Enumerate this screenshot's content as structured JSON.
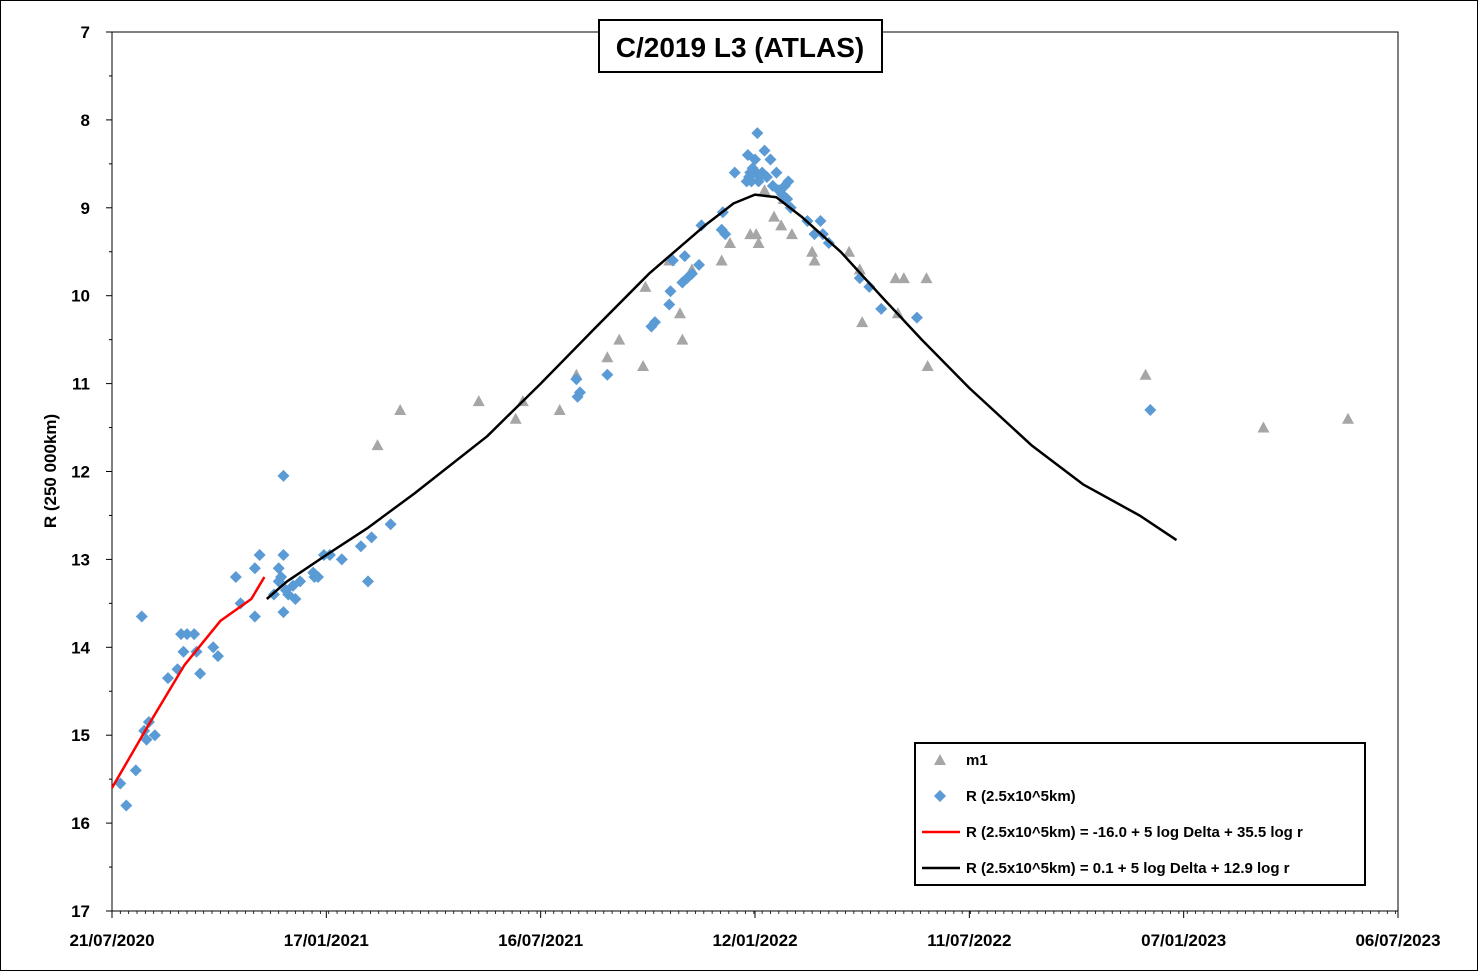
{
  "chart_data": {
    "type": "scatter",
    "title": "C/2019 L3 (ATLAS)",
    "ylabel": "R (250 000km)",
    "xlabel": "",
    "y_inverted": true,
    "ylim": [
      7,
      17
    ],
    "yticks": [
      7,
      8,
      9,
      10,
      11,
      12,
      13,
      14,
      15,
      16,
      17
    ],
    "xlim": [
      "2020-07-21",
      "2023-07-06"
    ],
    "xticks": [
      "2020-07-21",
      "2021-01-17",
      "2021-07-16",
      "2022-01-12",
      "2022-07-11",
      "2023-01-07",
      "2023-07-06"
    ],
    "xtick_labels": [
      "21/07/2020",
      "17/01/2021",
      "16/07/2021",
      "12/01/2022",
      "11/07/2022",
      "07/01/2023",
      "06/07/2023"
    ],
    "grid": false,
    "legend_position": "bottom-right",
    "series": [
      {
        "name": "m1",
        "kind": "scatter",
        "marker": "triangle",
        "color": "#a6a6a6",
        "points": [
          [
            "2021-03-01",
            11.7
          ],
          [
            "2021-03-20",
            11.3
          ],
          [
            "2021-05-25",
            11.2
          ],
          [
            "2021-06-25",
            11.4
          ],
          [
            "2021-07-01",
            11.2
          ],
          [
            "2021-08-01",
            11.3
          ],
          [
            "2021-08-15",
            10.9
          ],
          [
            "2021-09-10",
            10.7
          ],
          [
            "2021-09-20",
            10.5
          ],
          [
            "2021-10-10",
            10.8
          ],
          [
            "2021-10-12",
            9.9
          ],
          [
            "2021-11-01",
            9.6
          ],
          [
            "2021-11-10",
            10.2
          ],
          [
            "2021-11-12",
            10.5
          ],
          [
            "2021-11-20",
            9.7
          ],
          [
            "2021-12-15",
            9.6
          ],
          [
            "2021-12-22",
            9.4
          ],
          [
            "2022-01-08",
            9.3
          ],
          [
            "2022-01-13",
            9.3
          ],
          [
            "2022-01-15",
            9.4
          ],
          [
            "2022-01-20",
            8.8
          ],
          [
            "2022-01-28",
            9.1
          ],
          [
            "2022-02-03",
            9.2
          ],
          [
            "2022-02-05",
            8.9
          ],
          [
            "2022-02-12",
            9.3
          ],
          [
            "2022-03-01",
            9.5
          ],
          [
            "2022-03-03",
            9.6
          ],
          [
            "2022-04-01",
            9.5
          ],
          [
            "2022-04-10",
            9.7
          ],
          [
            "2022-04-12",
            10.3
          ],
          [
            "2022-05-10",
            9.8
          ],
          [
            "2022-05-12",
            10.2
          ],
          [
            "2022-05-17",
            9.8
          ],
          [
            "2022-06-05",
            9.8
          ],
          [
            "2022-06-06",
            10.8
          ],
          [
            "2022-12-06",
            10.9
          ],
          [
            "2023-03-15",
            11.5
          ],
          [
            "2023-05-25",
            11.4
          ]
        ]
      },
      {
        "name": "R (2.5x10^5km)",
        "kind": "scatter",
        "marker": "diamond",
        "color": "#5b9bd5",
        "points": [
          [
            "2020-07-28",
            15.55
          ],
          [
            "2020-08-02",
            15.8
          ],
          [
            "2020-08-10",
            15.4
          ],
          [
            "2020-08-15",
            13.65
          ],
          [
            "2020-08-17",
            14.95
          ],
          [
            "2020-08-19",
            15.05
          ],
          [
            "2020-08-21",
            14.85
          ],
          [
            "2020-08-26",
            15.0
          ],
          [
            "2020-09-06",
            14.35
          ],
          [
            "2020-09-14",
            14.25
          ],
          [
            "2020-09-17",
            13.85
          ],
          [
            "2020-09-19",
            14.05
          ],
          [
            "2020-09-22",
            13.85
          ],
          [
            "2020-09-28",
            13.85
          ],
          [
            "2020-09-30",
            14.05
          ],
          [
            "2020-10-03",
            14.3
          ],
          [
            "2020-10-14",
            14.0
          ],
          [
            "2020-10-18",
            14.1
          ],
          [
            "2020-11-02",
            13.2
          ],
          [
            "2020-11-06",
            13.5
          ],
          [
            "2020-11-18",
            13.65
          ],
          [
            "2020-11-18",
            13.1
          ],
          [
            "2020-11-22",
            12.95
          ],
          [
            "2020-12-04",
            13.4
          ],
          [
            "2020-12-08",
            13.25
          ],
          [
            "2020-12-08",
            13.1
          ],
          [
            "2020-12-10",
            13.2
          ],
          [
            "2020-12-12",
            12.95
          ],
          [
            "2020-12-12",
            12.05
          ],
          [
            "2020-12-12",
            13.6
          ],
          [
            "2020-12-14",
            13.35
          ],
          [
            "2020-12-16",
            13.4
          ],
          [
            "2020-12-20",
            13.3
          ],
          [
            "2020-12-22",
            13.45
          ],
          [
            "2020-12-26",
            13.25
          ],
          [
            "2021-01-06",
            13.15
          ],
          [
            "2021-01-07",
            13.2
          ],
          [
            "2021-01-10",
            13.2
          ],
          [
            "2021-01-15",
            12.95
          ],
          [
            "2021-01-20",
            12.95
          ],
          [
            "2021-01-30",
            13.0
          ],
          [
            "2021-02-15",
            12.85
          ],
          [
            "2021-02-21",
            13.25
          ],
          [
            "2021-02-24",
            12.75
          ],
          [
            "2021-03-12",
            12.6
          ],
          [
            "2021-08-15",
            10.95
          ],
          [
            "2021-08-16",
            11.15
          ],
          [
            "2021-08-18",
            11.1
          ],
          [
            "2021-09-10",
            10.9
          ],
          [
            "2021-10-17",
            10.35
          ],
          [
            "2021-10-20",
            10.3
          ],
          [
            "2021-11-01",
            10.1
          ],
          [
            "2021-11-02",
            9.95
          ],
          [
            "2021-11-04",
            9.6
          ],
          [
            "2021-11-12",
            9.85
          ],
          [
            "2021-11-14",
            9.55
          ],
          [
            "2021-11-16",
            9.8
          ],
          [
            "2021-11-20",
            9.75
          ],
          [
            "2021-11-26",
            9.65
          ],
          [
            "2021-11-28",
            9.2
          ],
          [
            "2021-12-15",
            9.25
          ],
          [
            "2021-12-16",
            9.05
          ],
          [
            "2021-12-18",
            9.3
          ],
          [
            "2021-12-26",
            8.6
          ],
          [
            "2022-01-05",
            8.7
          ],
          [
            "2022-01-06",
            8.4
          ],
          [
            "2022-01-07",
            8.65
          ],
          [
            "2022-01-08",
            8.6
          ],
          [
            "2022-01-09",
            8.7
          ],
          [
            "2022-01-10",
            8.55
          ],
          [
            "2022-01-12",
            8.45
          ],
          [
            "2022-01-13",
            8.6
          ],
          [
            "2022-01-14",
            8.15
          ],
          [
            "2022-01-15",
            8.7
          ],
          [
            "2022-01-16",
            8.65
          ],
          [
            "2022-01-18",
            8.6
          ],
          [
            "2022-01-20",
            8.35
          ],
          [
            "2022-01-22",
            8.65
          ],
          [
            "2022-01-25",
            8.45
          ],
          [
            "2022-01-27",
            8.75
          ],
          [
            "2022-01-30",
            8.6
          ],
          [
            "2022-02-01",
            8.8
          ],
          [
            "2022-02-04",
            8.85
          ],
          [
            "2022-02-06",
            8.75
          ],
          [
            "2022-02-08",
            8.9
          ],
          [
            "2022-02-09",
            8.7
          ],
          [
            "2022-02-11",
            9.0
          ],
          [
            "2022-02-25",
            9.15
          ],
          [
            "2022-03-03",
            9.3
          ],
          [
            "2022-03-08",
            9.15
          ],
          [
            "2022-03-10",
            9.3
          ],
          [
            "2022-03-15",
            9.4
          ],
          [
            "2022-04-10",
            9.8
          ],
          [
            "2022-04-18",
            9.9
          ],
          [
            "2022-04-28",
            10.15
          ],
          [
            "2022-05-28",
            10.25
          ],
          [
            "2022-12-10",
            11.3
          ]
        ]
      },
      {
        "name": "R (2.5x10^5km) = -16.0 + 5 log Delta + 35.5 log r",
        "kind": "line",
        "color": "#ff0000",
        "points": [
          [
            "2020-07-21",
            15.6
          ],
          [
            "2020-08-20",
            14.9
          ],
          [
            "2020-09-20",
            14.2
          ],
          [
            "2020-10-20",
            13.7
          ],
          [
            "2020-11-15",
            13.45
          ],
          [
            "2020-11-26",
            13.2
          ]
        ]
      },
      {
        "name": "R (2.5x10^5km) = 0.1 + 5 log Delta + 12.9 log r",
        "kind": "line",
        "color": "#000000",
        "points": [
          [
            "2020-11-28",
            13.45
          ],
          [
            "2020-12-15",
            13.25
          ],
          [
            "2021-01-17",
            12.95
          ],
          [
            "2021-02-20",
            12.65
          ],
          [
            "2021-04-01",
            12.25
          ],
          [
            "2021-06-01",
            11.6
          ],
          [
            "2021-07-16",
            11.0
          ],
          [
            "2021-09-01",
            10.35
          ],
          [
            "2021-10-15",
            9.75
          ],
          [
            "2021-12-01",
            9.2
          ],
          [
            "2021-12-25",
            8.95
          ],
          [
            "2022-01-12",
            8.85
          ],
          [
            "2022-01-30",
            8.88
          ],
          [
            "2022-02-20",
            9.1
          ],
          [
            "2022-03-25",
            9.5
          ],
          [
            "2022-05-01",
            10.05
          ],
          [
            "2022-06-01",
            10.5
          ],
          [
            "2022-07-11",
            11.05
          ],
          [
            "2022-09-01",
            11.7
          ],
          [
            "2022-10-15",
            12.15
          ],
          [
            "2022-12-01",
            12.5
          ],
          [
            "2023-01-01",
            12.78
          ]
        ]
      }
    ]
  }
}
